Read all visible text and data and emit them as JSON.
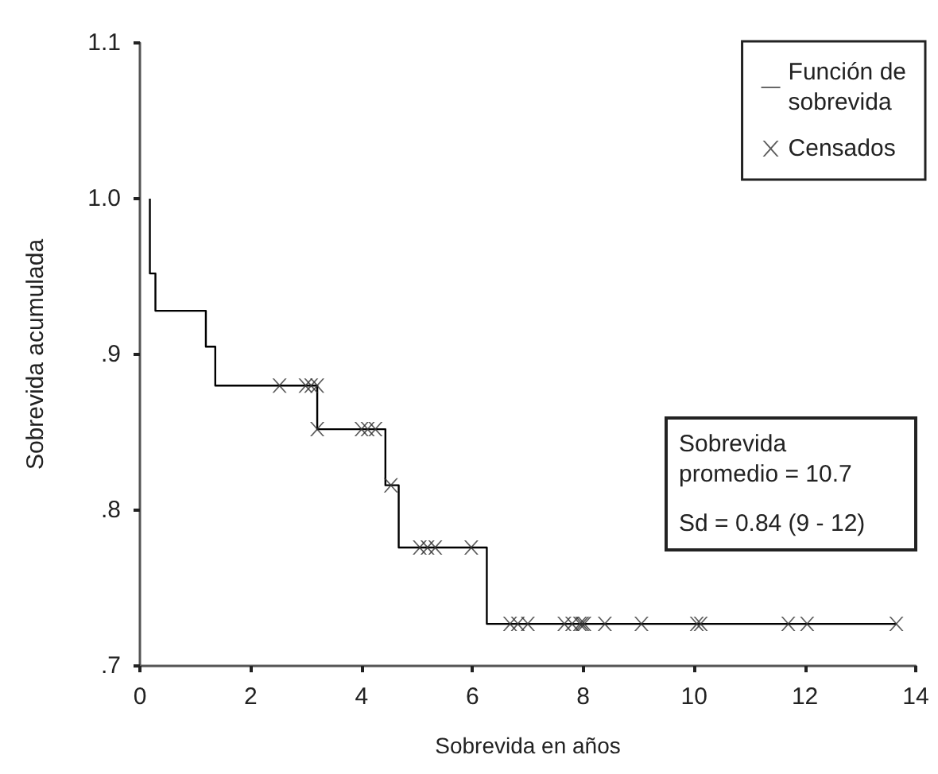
{
  "chart_data": {
    "type": "step",
    "xlabel": "Sobrevida en años",
    "ylabel": "Sobrevida acumulada",
    "xlim": [
      0,
      14
    ],
    "xticks": [
      0,
      2,
      4,
      6,
      8,
      10,
      12,
      14
    ],
    "ylim": [
      0.7,
      1.1
    ],
    "yticks": [
      {
        "value": 0.7,
        "label": ".7"
      },
      {
        "value": 0.8,
        "label": ".8"
      },
      {
        "value": 0.9,
        "label": ".9"
      },
      {
        "value": 1.0,
        "label": "1.0"
      },
      {
        "value": 1.1,
        "label": "1.1"
      }
    ],
    "grid": false,
    "legend": "top right",
    "annotations": [
      "Sobrevida promedio = 10.7",
      "Sd = 0.84 (9 - 12)"
    ],
    "series": [
      {
        "name": "Función de sobrevida",
        "color": "#000000",
        "marker": "none",
        "line_style": "solid",
        "x": [
          0.18,
          0.18,
          0.28,
          1.19,
          1.36,
          3.2,
          4.43,
          4.67,
          6.26,
          13.65
        ],
        "values": [
          1.0,
          0.952,
          0.928,
          0.905,
          0.88,
          0.852,
          0.816,
          0.776,
          0.727,
          0.727
        ]
      },
      {
        "name": "Censados",
        "type": "scatter",
        "color": "#333333",
        "marker": "cross",
        "x": [
          2.52,
          2.99,
          3.09,
          3.2,
          3.2,
          4.0,
          4.11,
          4.25,
          4.53,
          5.05,
          5.19,
          5.33,
          5.98,
          6.68,
          6.82,
          7.0,
          7.66,
          7.8,
          7.94,
          7.98,
          8.02,
          8.39,
          9.05,
          10.05,
          10.12,
          11.7,
          12.04,
          13.65
        ],
        "values": [
          0.88,
          0.88,
          0.88,
          0.88,
          0.852,
          0.852,
          0.852,
          0.852,
          0.816,
          0.776,
          0.776,
          0.776,
          0.776,
          0.727,
          0.727,
          0.727,
          0.727,
          0.727,
          0.727,
          0.727,
          0.727,
          0.727,
          0.727,
          0.727,
          0.727,
          0.727,
          0.727,
          0.727
        ]
      }
    ]
  }
}
